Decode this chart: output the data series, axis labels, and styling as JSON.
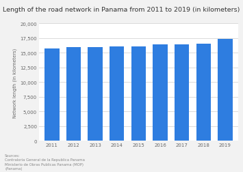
{
  "title": "Length of the road network in Panama from 2011 to 2019 (in kilometers)",
  "years": [
    "2011",
    "2012",
    "2013",
    "2014",
    "2015",
    "2016",
    "2017",
    "2018",
    "2019"
  ],
  "values": [
    15800,
    15950,
    15990,
    16050,
    16150,
    16450,
    16500,
    16550,
    17400
  ],
  "bar_color": "#2e7de0",
  "ylim": [
    0,
    20000
  ],
  "yticks": [
    0,
    2500,
    5000,
    7500,
    10000,
    12500,
    15000,
    17500,
    20000
  ],
  "ylabel": "Network length (in kilometers)",
  "background_color": "#f2f2f2",
  "plot_bg_color": "#ffffff",
  "source_text": "Sources:\nContraloria General de la Republica Panama\nMinisterio de Obras Publicas Panama (MOP)\n(Panama)",
  "title_fontsize": 6.8,
  "label_fontsize": 4.8,
  "tick_fontsize": 5.0,
  "source_fontsize": 3.8
}
